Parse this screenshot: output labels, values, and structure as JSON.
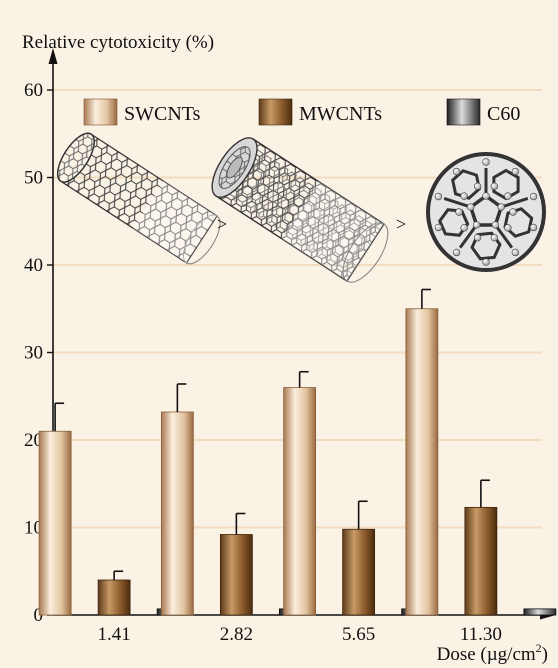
{
  "chart_data": {
    "type": "bar",
    "ylabel": "Relative cytotoxicity (%)",
    "xlabel": "Dose (µg/cm²)",
    "xlabel_prefix": "Dose (µg/cm",
    "xlabel_sup": "2",
    "xlabel_suffix": ")",
    "categories": [
      "1.41",
      "2.82",
      "5.65",
      "11.30"
    ],
    "yticks": [
      "0",
      "10",
      "20",
      "30",
      "40",
      "50",
      "60"
    ],
    "ylim": [
      0,
      65
    ],
    "grid": true,
    "legend_position": "top",
    "series": [
      {
        "name": "SWCNTs",
        "color": "#d9b690",
        "values": [
          21.0,
          23.2,
          26.0,
          35.0
        ],
        "errors": [
          3.2,
          3.2,
          1.8,
          2.2
        ]
      },
      {
        "name": "MWCNTs",
        "color": "#8f5f30",
        "values": [
          4.0,
          9.2,
          9.8,
          12.3
        ],
        "errors": [
          1.0,
          2.4,
          3.2,
          3.1
        ]
      },
      {
        "name": "C60",
        "color": "#555555",
        "values": [
          0.7,
          0.7,
          0.7,
          0.7
        ],
        "errors": [
          0,
          0,
          0,
          0
        ]
      }
    ],
    "annotations": [
      ">",
      ">"
    ],
    "illustrations": [
      "single-walled-nanotube",
      "multi-walled-nanotube",
      "fullerene-c60"
    ]
  }
}
